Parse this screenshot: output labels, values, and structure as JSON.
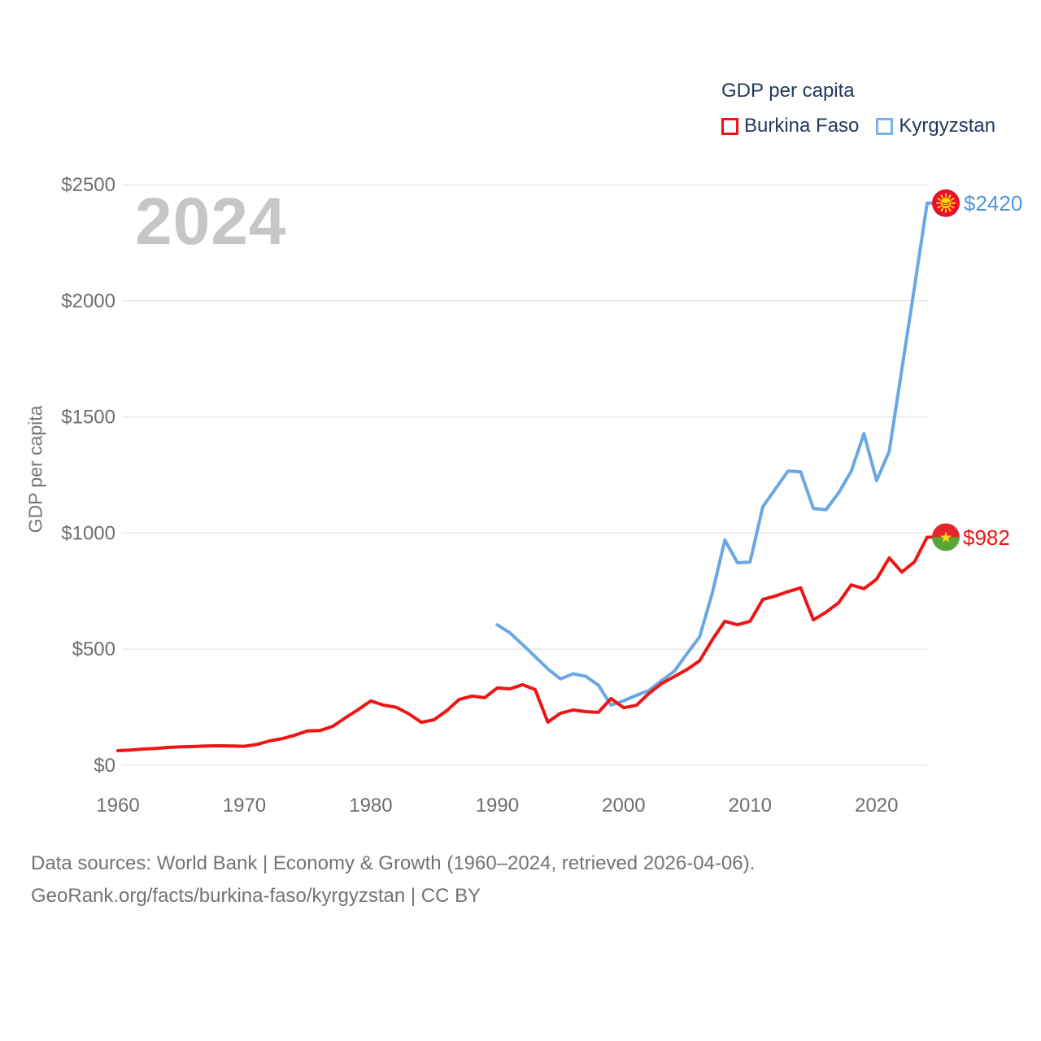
{
  "page": {
    "background": "#ffffff"
  },
  "legend": {
    "title": "GDP per capita",
    "items": [
      {
        "label": "Burkina Faso",
        "color": "#ee1414"
      },
      {
        "label": "Kyrgyzstan",
        "color": "#7ab3ea"
      }
    ]
  },
  "watermark": "2024",
  "y_axis_title": "GDP per capita",
  "end_labels": {
    "kyrgyzstan": {
      "text": "$2420",
      "color": "#4f97d9"
    },
    "burkina_faso": {
      "text": "$982",
      "color": "#ed1515"
    }
  },
  "footer": {
    "line1": "Data sources: World Bank | Economy & Growth (1960–2024, retrieved 2026-04-06).",
    "line2": "GeoRank.org/facts/burkina-faso/kyrgyzstan | CC BY"
  },
  "chart_data": {
    "type": "line",
    "title": "GDP per capita",
    "xlabel": "",
    "ylabel": "GDP per capita",
    "xlim": [
      1960,
      2024
    ],
    "ylim": [
      0,
      2500
    ],
    "grid": "horizontal",
    "grid_color": "#e8e8e8",
    "axis_text_color": "#6e6e6e",
    "legend_position": "top-right",
    "yticks": [
      {
        "value": 0,
        "label": "$0"
      },
      {
        "value": 500,
        "label": "$500"
      },
      {
        "value": 1000,
        "label": "$1000"
      },
      {
        "value": 1500,
        "label": "$1500"
      },
      {
        "value": 2000,
        "label": "$2000"
      },
      {
        "value": 2500,
        "label": "$2500"
      }
    ],
    "xticks": [
      {
        "value": 1960,
        "label": "1960"
      },
      {
        "value": 1970,
        "label": "1970"
      },
      {
        "value": 1980,
        "label": "1980"
      },
      {
        "value": 1990,
        "label": "1990"
      },
      {
        "value": 2000,
        "label": "2000"
      },
      {
        "value": 2010,
        "label": "2010"
      },
      {
        "value": 2020,
        "label": "2020"
      }
    ],
    "series": [
      {
        "name": "Kyrgyzstan",
        "color": "#6ba7e5",
        "start_year": 1990,
        "end_year": 2024,
        "end_value_label": "$2420",
        "values": [
          605,
          570,
          520,
          468,
          415,
          372,
          394,
          383,
          345,
          259,
          278,
          301,
          322,
          365,
          405,
          480,
          553,
          740,
          970,
          872,
          875,
          1113,
          1190,
          1267,
          1263,
          1106,
          1100,
          1173,
          1266,
          1428,
          1226,
          1352,
          1705,
          2060,
          2420
        ]
      },
      {
        "name": "Burkina Faso",
        "color": "#ed1515",
        "start_year": 1960,
        "end_year": 2024,
        "end_value_label": "$982",
        "values": [
          63,
          66,
          70,
          73,
          77,
          80,
          81,
          83,
          84,
          83,
          82,
          90,
          105,
          115,
          130,
          148,
          150,
          168,
          205,
          240,
          277,
          259,
          250,
          222,
          185,
          196,
          235,
          284,
          298,
          291,
          333,
          329,
          347,
          326,
          186,
          224,
          238,
          231,
          228,
          287,
          248,
          258,
          310,
          352,
          382,
          412,
          450,
          540,
          620,
          605,
          620,
          714,
          729,
          748,
          764,
          626,
          659,
          700,
          777,
          760,
          801,
          893,
          832,
          876,
          982
        ]
      }
    ]
  }
}
